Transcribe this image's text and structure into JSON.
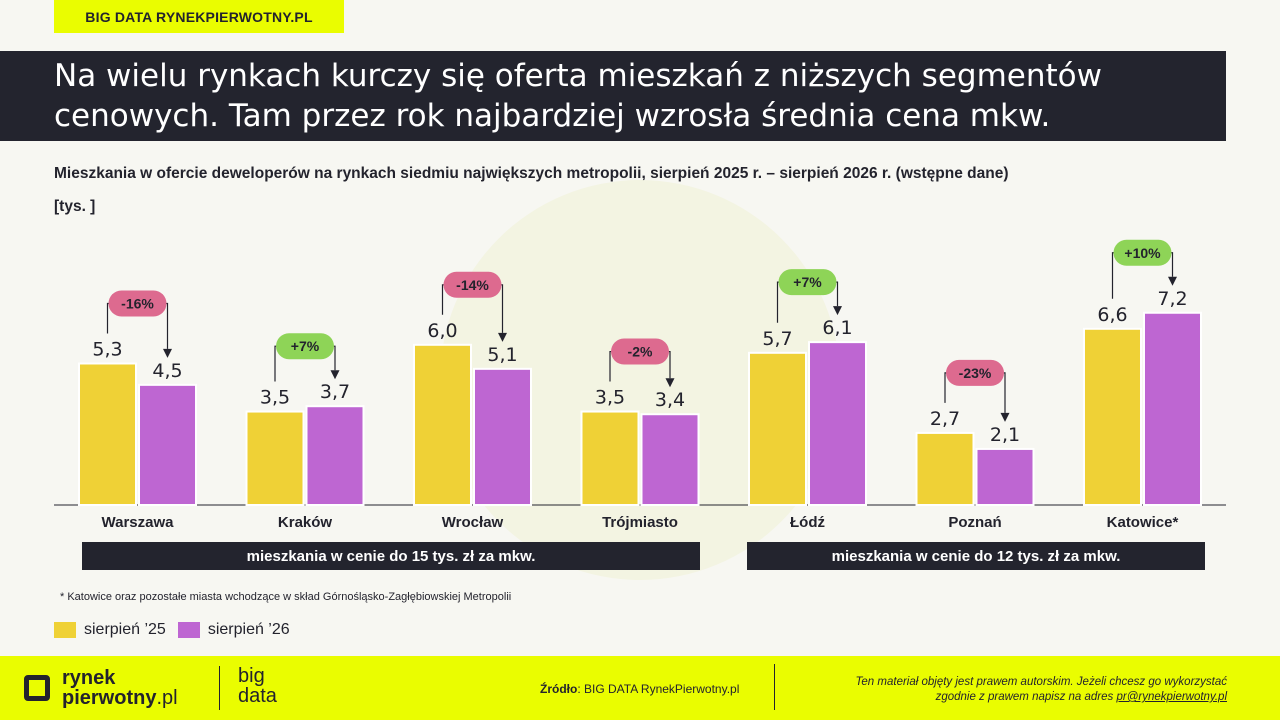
{
  "tag": "BIG DATA RYNEKPIERWOTNY.PL",
  "title": "Na wielu rynkach kurczy się oferta mieszkań z niższych segmentów cenowych. Tam przez rok najbardziej wzrosła średnia cena mkw.",
  "subtitle": "Mieszkania w ofercie deweloperów na rynkach siedmiu największych metropolii, sierpień 2025 r. – sierpień 2026 r.  (wstępne dane)",
  "unit": "[tys. ]",
  "segments": {
    "first": "mieszkania w cenie do 15 tys. zł za mkw.",
    "second": "mieszkania w cenie do 12 tys. zł za mkw."
  },
  "footnote": "* Katowice oraz pozostałe miasta wchodzące w skład Górnośląsko-Zagłębiowskiej Metropolii",
  "legend": {
    "s1": "sierpień ’25",
    "s2": "sierpień ’26"
  },
  "footer": {
    "logo_line1": "rynek",
    "logo_line2": "pierwotny",
    "logo_suffix": ".pl",
    "logo_big1": "big",
    "logo_big2": "data",
    "source_label": "Źródło",
    "source_text": ": BIG DATA RynekPierwotny.pl",
    "copyright_line1": "Ten materiał objęty jest prawem autorskim. Jeżeli chcesz go wykorzystać",
    "copyright_line2": "zgodnie z prawem napisz na adres ",
    "copyright_email": "pr@rynekpierwotny.pl"
  },
  "colors": {
    "s1": "#efd136",
    "s2": "#be66d2",
    "neg": "#dd6a8f",
    "pos": "#8ed457",
    "dark": "#23242e",
    "accent": "#eafd00"
  },
  "chart_data": {
    "type": "bar",
    "categories": [
      "Warszawa",
      "Kraków",
      "Wrocław",
      "Trójmiasto",
      "Łódź",
      "Poznań",
      "Katowice*"
    ],
    "series": [
      {
        "name": "sierpień ’25",
        "values": [
          5.3,
          3.5,
          6.0,
          3.5,
          5.7,
          2.7,
          6.6
        ],
        "labels": [
          "5,3",
          "3,5",
          "6,0",
          "3,5",
          "5,7",
          "2,7",
          "6,6"
        ]
      },
      {
        "name": "sierpień ’26",
        "values": [
          4.5,
          3.7,
          5.1,
          3.4,
          6.1,
          2.1,
          7.2
        ],
        "labels": [
          "4,5",
          "3,7",
          "5,1",
          "3,4",
          "6,1",
          "2,1",
          "7,2"
        ]
      }
    ],
    "changes": [
      "-16%",
      "+7%",
      "-14%",
      "-2%",
      "+7%",
      "-23%",
      "+10%"
    ],
    "ylim": [
      0,
      8
    ]
  }
}
